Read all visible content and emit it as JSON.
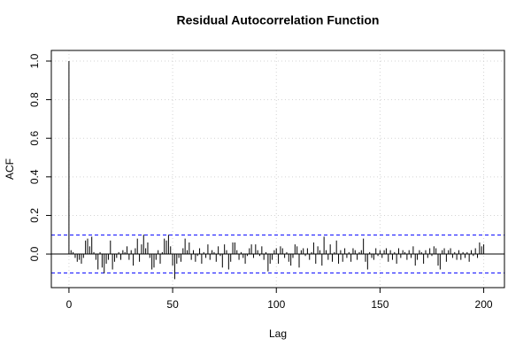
{
  "chart_data": {
    "type": "acf",
    "title": "Residual Autocorrelation Function",
    "x_label": "Lag",
    "y_label": "ACF",
    "x": [
      0,
      1,
      2,
      3,
      4,
      5,
      6,
      7,
      8,
      9,
      10,
      11,
      12,
      13,
      14,
      15,
      16,
      17,
      18,
      19,
      20,
      21,
      22,
      23,
      24,
      25,
      26,
      27,
      28,
      29,
      30,
      31,
      32,
      33,
      34,
      35,
      36,
      37,
      38,
      39,
      40,
      41,
      42,
      43,
      44,
      45,
      46,
      47,
      48,
      49,
      50,
      51,
      52,
      53,
      54,
      55,
      56,
      57,
      58,
      59,
      60,
      61,
      62,
      63,
      64,
      65,
      66,
      67,
      68,
      69,
      70,
      71,
      72,
      73,
      74,
      75,
      76,
      77,
      78,
      79,
      80,
      81,
      82,
      83,
      84,
      85,
      86,
      87,
      88,
      89,
      90,
      91,
      92,
      93,
      94,
      95,
      96,
      97,
      98,
      99,
      100,
      101,
      102,
      103,
      104,
      105,
      106,
      107,
      108,
      109,
      110,
      111,
      112,
      113,
      114,
      115,
      116,
      117,
      118,
      119,
      120,
      121,
      122,
      123,
      124,
      125,
      126,
      127,
      128,
      129,
      130,
      131,
      132,
      133,
      134,
      135,
      136,
      137,
      138,
      139,
      140,
      141,
      142,
      143,
      144,
      145,
      146,
      147,
      148,
      149,
      150,
      151,
      152,
      153,
      154,
      155,
      156,
      157,
      158,
      159,
      160,
      161,
      162,
      163,
      164,
      165,
      166,
      167,
      168,
      169,
      170,
      171,
      172,
      173,
      174,
      175,
      176,
      177,
      178,
      179,
      180,
      181,
      182,
      183,
      184,
      185,
      186,
      187,
      188,
      189,
      190,
      191,
      192,
      193,
      194,
      195,
      196,
      197,
      198,
      199,
      200
    ],
    "values": [
      1.0,
      0.02,
      0.01,
      -0.02,
      -0.04,
      -0.03,
      -0.05,
      -0.02,
      0.07,
      0.08,
      0.04,
      0.09,
      0.01,
      -0.03,
      -0.08,
      0.01,
      -0.07,
      -0.1,
      -0.05,
      -0.03,
      0.07,
      -0.08,
      -0.04,
      -0.02,
      0.01,
      -0.03,
      0.02,
      0.01,
      0.04,
      -0.03,
      0.02,
      -0.06,
      0.03,
      0.08,
      -0.04,
      0.05,
      0.1,
      0.03,
      0.06,
      -0.02,
      -0.08,
      -0.07,
      -0.03,
      0.02,
      -0.05,
      0.01,
      0.08,
      0.07,
      0.1,
      0.04,
      -0.06,
      -0.13,
      -0.05,
      -0.02,
      -0.04,
      0.03,
      0.08,
      0.02,
      0.06,
      -0.03,
      0.02,
      -0.04,
      -0.01,
      0.03,
      -0.05,
      0.01,
      -0.02,
      0.05,
      -0.03,
      0.02,
      0.01,
      -0.04,
      0.04,
      -0.01,
      -0.07,
      0.05,
      0.02,
      -0.08,
      -0.04,
      0.06,
      0.06,
      0.02,
      -0.03,
      0.01,
      -0.02,
      -0.05,
      -0.01,
      0.03,
      0.05,
      -0.02,
      0.05,
      0.02,
      -0.01,
      0.04,
      -0.03,
      0.01,
      -0.09,
      -0.05,
      -0.03,
      0.02,
      0.03,
      -0.05,
      0.04,
      0.03,
      -0.02,
      0.01,
      -0.04,
      -0.06,
      -0.02,
      0.05,
      0.04,
      -0.07,
      0.02,
      0.03,
      -0.01,
      0.03,
      -0.03,
      0.01,
      0.06,
      -0.05,
      0.04,
      0.02,
      -0.06,
      0.09,
      0.02,
      -0.03,
      0.05,
      -0.04,
      0.01,
      0.07,
      -0.05,
      0.02,
      -0.04,
      0.03,
      -0.02,
      0.01,
      -0.04,
      0.03,
      0.02,
      -0.03,
      0.01,
      0.02,
      0.08,
      -0.04,
      -0.08,
      0.01,
      -0.02,
      -0.03,
      0.03,
      -0.01,
      0.02,
      -0.02,
      0.02,
      0.03,
      -0.04,
      0.02,
      -0.03,
      0.01,
      -0.05,
      0.03,
      -0.02,
      0.02,
      0.01,
      -0.03,
      0.02,
      -0.02,
      0.04,
      -0.06,
      -0.03,
      0.02,
      0.01,
      -0.05,
      0.02,
      -0.02,
      0.03,
      -0.01,
      0.04,
      0.03,
      -0.06,
      -0.08,
      0.02,
      0.03,
      -0.04,
      0.02,
      0.03,
      -0.02,
      0.01,
      -0.03,
      0.02,
      -0.03,
      0.01,
      -0.02,
      0.01,
      -0.04,
      0.02,
      -0.01,
      0.03,
      -0.02,
      0.06,
      0.04,
      0.05
    ],
    "color": "#000000",
    "ci": [
      -0.098,
      0.098
    ],
    "ci_color": "#0000ff",
    "xlim": [
      -8.5,
      210
    ],
    "ylim": [
      -0.174,
      1.055
    ],
    "xticks": [
      0,
      50,
      100,
      150,
      200
    ],
    "yticks": [
      {
        "value": 0,
        "label": "0.0"
      },
      0.2,
      0.4,
      0.6,
      0.8,
      {
        "value": 1,
        "label": "1.0"
      }
    ],
    "grid": true
  }
}
